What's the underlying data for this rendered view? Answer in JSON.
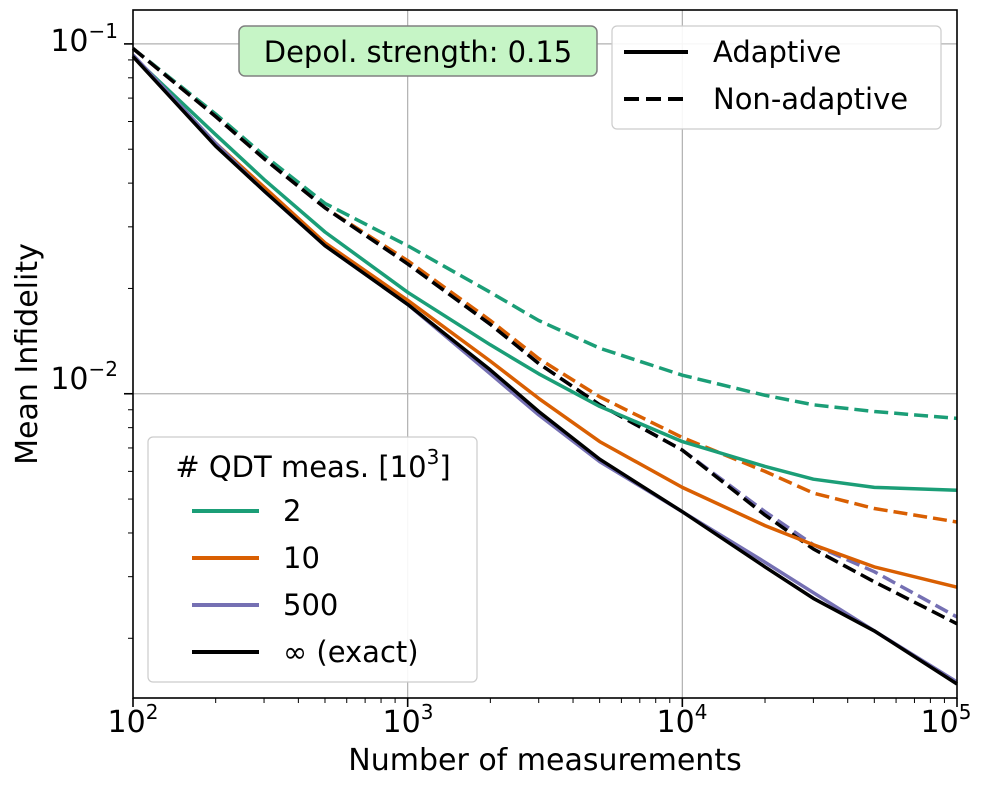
{
  "chart_data": {
    "type": "line",
    "xscale": "log",
    "yscale": "log",
    "xlabel": "Number of measurements",
    "ylabel": "Mean Infidelity",
    "xlim": [
      100,
      100000
    ],
    "ylim": [
      0.00135,
      0.125
    ],
    "grid": true,
    "x_ticks": [
      {
        "value": 100,
        "base": "10",
        "exp": "2"
      },
      {
        "value": 1000,
        "base": "10",
        "exp": "3"
      },
      {
        "value": 10000,
        "base": "10",
        "exp": "4"
      },
      {
        "value": 100000,
        "base": "10",
        "exp": "5"
      }
    ],
    "y_ticks": [
      {
        "value": 0.1,
        "base": "10",
        "exp": "−1"
      },
      {
        "value": 0.01,
        "base": "10",
        "exp": "−2"
      }
    ],
    "annotation": {
      "text": "Depol. strength: 0.15",
      "color": "#c6f5c6"
    },
    "legend_style": {
      "location": "top-right",
      "entries": [
        {
          "label": "Adaptive",
          "dash": "solid"
        },
        {
          "label": "Non-adaptive",
          "dash": "dashed"
        }
      ]
    },
    "legend_qdt": {
      "location": "bottom-left",
      "title": "# QDT meas. [10",
      "title_exp": "3",
      "title_end": "]",
      "entries": [
        {
          "label": "2",
          "color": "#1b9e77"
        },
        {
          "label": "10",
          "color": "#d95f02"
        },
        {
          "label": "500",
          "color": "#7570b3"
        },
        {
          "label": "∞ (exact)",
          "color": "#000000"
        }
      ]
    },
    "series": [
      {
        "name": "2 (non-adaptive)",
        "color": "#1b9e77",
        "style": "dashed",
        "x": [
          100,
          200,
          300,
          500,
          1000,
          2000,
          3000,
          5000,
          10000,
          20000,
          30000,
          50000,
          100000
        ],
        "y": [
          0.097,
          0.063,
          0.048,
          0.035,
          0.0265,
          0.0195,
          0.0162,
          0.0135,
          0.0113,
          0.0099,
          0.0093,
          0.0089,
          0.0085
        ]
      },
      {
        "name": "10 (non-adaptive)",
        "color": "#d95f02",
        "style": "dashed",
        "x": [
          100,
          200,
          300,
          500,
          1000,
          2000,
          3000,
          5000,
          10000,
          20000,
          30000,
          50000,
          100000
        ],
        "y": [
          0.097,
          0.062,
          0.047,
          0.034,
          0.024,
          0.0162,
          0.0126,
          0.0098,
          0.0075,
          0.006,
          0.0052,
          0.0047,
          0.0043
        ]
      },
      {
        "name": "500 (non-adaptive)",
        "color": "#7570b3",
        "style": "dashed",
        "x": [
          100,
          200,
          300,
          500,
          1000,
          2000,
          3000,
          5000,
          10000,
          20000,
          30000,
          50000,
          100000
        ],
        "y": [
          0.097,
          0.062,
          0.047,
          0.034,
          0.0235,
          0.0158,
          0.0122,
          0.0093,
          0.0069,
          0.0046,
          0.0037,
          0.0031,
          0.0023
        ]
      },
      {
        "name": "∞ (exact) (non-adaptive)",
        "color": "#000000",
        "style": "dashed",
        "x": [
          100,
          200,
          300,
          500,
          1000,
          2000,
          3000,
          5000,
          10000,
          20000,
          30000,
          50000,
          100000
        ],
        "y": [
          0.097,
          0.062,
          0.047,
          0.034,
          0.0235,
          0.0158,
          0.0122,
          0.0093,
          0.0069,
          0.0045,
          0.0036,
          0.0029,
          0.0022
        ]
      },
      {
        "name": "2 (adaptive)",
        "color": "#1b9e77",
        "style": "solid",
        "x": [
          100,
          200,
          300,
          500,
          1000,
          2000,
          3000,
          5000,
          10000,
          20000,
          30000,
          50000,
          100000
        ],
        "y": [
          0.092,
          0.055,
          0.041,
          0.029,
          0.0195,
          0.0138,
          0.0114,
          0.0092,
          0.0073,
          0.0062,
          0.0057,
          0.0054,
          0.0053
        ]
      },
      {
        "name": "10 (adaptive)",
        "color": "#d95f02",
        "style": "solid",
        "x": [
          100,
          200,
          300,
          500,
          1000,
          2000,
          3000,
          5000,
          10000,
          20000,
          30000,
          50000,
          100000
        ],
        "y": [
          0.092,
          0.052,
          0.039,
          0.027,
          0.0185,
          0.0124,
          0.0097,
          0.0073,
          0.0054,
          0.0042,
          0.0037,
          0.0032,
          0.0028
        ]
      },
      {
        "name": "500 (adaptive)",
        "color": "#7570b3",
        "style": "solid",
        "x": [
          100,
          200,
          300,
          500,
          1000,
          2000,
          3000,
          5000,
          10000,
          20000,
          30000,
          50000,
          100000
        ],
        "y": [
          0.093,
          0.052,
          0.038,
          0.0265,
          0.018,
          0.0114,
          0.0087,
          0.0064,
          0.0046,
          0.0033,
          0.0027,
          0.0021,
          0.0015
        ]
      },
      {
        "name": "∞ (exact) (adaptive)",
        "color": "#000000",
        "style": "solid",
        "x": [
          100,
          200,
          300,
          500,
          1000,
          2000,
          3000,
          5000,
          10000,
          20000,
          30000,
          50000,
          100000
        ],
        "y": [
          0.092,
          0.051,
          0.038,
          0.0265,
          0.018,
          0.0117,
          0.0089,
          0.0065,
          0.0046,
          0.0032,
          0.0026,
          0.0021,
          0.00148
        ]
      }
    ]
  }
}
